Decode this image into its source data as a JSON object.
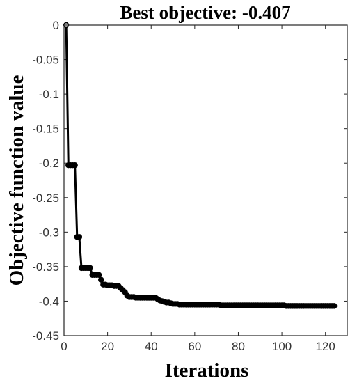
{
  "chart_data": {
    "type": "line",
    "title": "Best objective: -0.407",
    "xlabel": "Iterations",
    "ylabel": "Objective function value",
    "xlim": [
      0,
      130
    ],
    "ylim": [
      -0.45,
      0
    ],
    "xticks": [
      0,
      20,
      40,
      60,
      80,
      100,
      120
    ],
    "xtick_labels": [
      "0",
      "20",
      "40",
      "60",
      "80",
      "100",
      "120"
    ],
    "yticks": [
      0,
      -0.05,
      -0.1,
      -0.15,
      -0.2,
      -0.25,
      -0.3,
      -0.35,
      -0.4,
      -0.45
    ],
    "ytick_labels": [
      "0",
      "-0.05",
      "-0.1",
      "-0.15",
      "-0.2",
      "-0.25",
      "-0.3",
      "-0.35",
      "-0.4",
      "-0.45"
    ],
    "grid": false,
    "line_color": "#000000",
    "marker": "circle",
    "series": [
      {
        "x": [
          1,
          2,
          3,
          4,
          5,
          6,
          7,
          8,
          9,
          10,
          11,
          12,
          13,
          14,
          15,
          16,
          17,
          18,
          19,
          20,
          21,
          22,
          23,
          24,
          25,
          26,
          27,
          28,
          29,
          30,
          31,
          32,
          33,
          34,
          35,
          36,
          37,
          38,
          39,
          40,
          41,
          42,
          43,
          44,
          45,
          46,
          47,
          48,
          49,
          50,
          51,
          52,
          53,
          54,
          55,
          56,
          57,
          58,
          59,
          60,
          61,
          62,
          63,
          64,
          65,
          66,
          67,
          68,
          69,
          70,
          71,
          72,
          73,
          74,
          75,
          76,
          77,
          78,
          79,
          80,
          81,
          82,
          83,
          84,
          85,
          86,
          87,
          88,
          89,
          90,
          91,
          92,
          93,
          94,
          95,
          96,
          97,
          98,
          99,
          100,
          101,
          102,
          103,
          104,
          105,
          106,
          107,
          108,
          109,
          110,
          111,
          112,
          113,
          114,
          115,
          116,
          117,
          118,
          119,
          120,
          121,
          122,
          123,
          124
        ],
        "y": [
          0,
          -0.203,
          -0.203,
          -0.203,
          -0.203,
          -0.307,
          -0.307,
          -0.352,
          -0.352,
          -0.352,
          -0.352,
          -0.352,
          -0.362,
          -0.362,
          -0.362,
          -0.362,
          -0.369,
          -0.376,
          -0.376,
          -0.377,
          -0.377,
          -0.377,
          -0.378,
          -0.378,
          -0.378,
          -0.381,
          -0.384,
          -0.387,
          -0.392,
          -0.394,
          -0.394,
          -0.394,
          -0.395,
          -0.395,
          -0.395,
          -0.395,
          -0.395,
          -0.395,
          -0.395,
          -0.395,
          -0.395,
          -0.395,
          -0.397,
          -0.399,
          -0.4,
          -0.401,
          -0.402,
          -0.402,
          -0.403,
          -0.404,
          -0.404,
          -0.404,
          -0.405,
          -0.405,
          -0.405,
          -0.405,
          -0.405,
          -0.405,
          -0.405,
          -0.405,
          -0.405,
          -0.405,
          -0.405,
          -0.405,
          -0.405,
          -0.405,
          -0.405,
          -0.405,
          -0.405,
          -0.405,
          -0.405,
          -0.406,
          -0.406,
          -0.406,
          -0.406,
          -0.406,
          -0.406,
          -0.406,
          -0.406,
          -0.406,
          -0.406,
          -0.406,
          -0.406,
          -0.406,
          -0.406,
          -0.406,
          -0.406,
          -0.406,
          -0.406,
          -0.406,
          -0.406,
          -0.406,
          -0.406,
          -0.406,
          -0.406,
          -0.406,
          -0.406,
          -0.406,
          -0.406,
          -0.406,
          -0.406,
          -0.407,
          -0.407,
          -0.407,
          -0.407,
          -0.407,
          -0.407,
          -0.407,
          -0.407,
          -0.407,
          -0.407,
          -0.407,
          -0.407,
          -0.407,
          -0.407,
          -0.407,
          -0.407,
          -0.407,
          -0.407,
          -0.407,
          -0.407,
          -0.407,
          -0.407,
          -0.407
        ]
      }
    ]
  }
}
